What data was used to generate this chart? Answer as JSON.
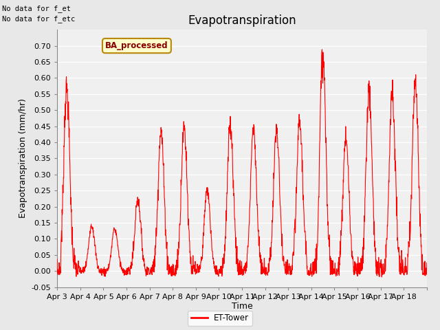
{
  "title": "Evapotranspiration",
  "xlabel": "Time",
  "ylabel": "Evapotranspiration (mm/hr)",
  "ylim": [
    -0.05,
    0.75
  ],
  "yticks": [
    -0.05,
    0.0,
    0.05,
    0.1,
    0.15,
    0.2,
    0.25,
    0.3,
    0.35,
    0.4,
    0.45,
    0.5,
    0.55,
    0.6,
    0.65,
    0.7
  ],
  "line_color": "red",
  "line_width": 0.8,
  "background_color": "#e8e8e8",
  "plot_bg_color": "#f0f0f0",
  "grid_color": "white",
  "title_fontsize": 12,
  "axis_fontsize": 9,
  "tick_fontsize": 8,
  "note_text1": "No data for f_et",
  "note_text2": "No data for f_etc",
  "legend_label": "ET-Tower",
  "ba_label": "BA_processed",
  "xtick_labels": [
    "Apr 3",
    "Apr 4",
    "Apr 5",
    "Apr 6",
    "Apr 7",
    "Apr 8",
    "Apr 9",
    "Apr 10",
    "Apr 11",
    "Apr 12",
    "Apr 13",
    "Apr 14",
    "Apr 15",
    "Apr 16",
    "Apr 17",
    "Apr 18"
  ],
  "daily_peaks": [
    0.56,
    0.14,
    0.13,
    0.22,
    0.43,
    0.44,
    0.25,
    0.45,
    0.44,
    0.43,
    0.46,
    0.66,
    0.41,
    0.55,
    0.55,
    0.58
  ],
  "peak_centers": [
    0.42,
    0.5,
    0.5,
    0.5,
    0.5,
    0.5,
    0.5,
    0.5,
    0.5,
    0.5,
    0.5,
    0.5,
    0.5,
    0.5,
    0.5,
    0.5
  ],
  "n_days": 16,
  "points_per_day": 96
}
